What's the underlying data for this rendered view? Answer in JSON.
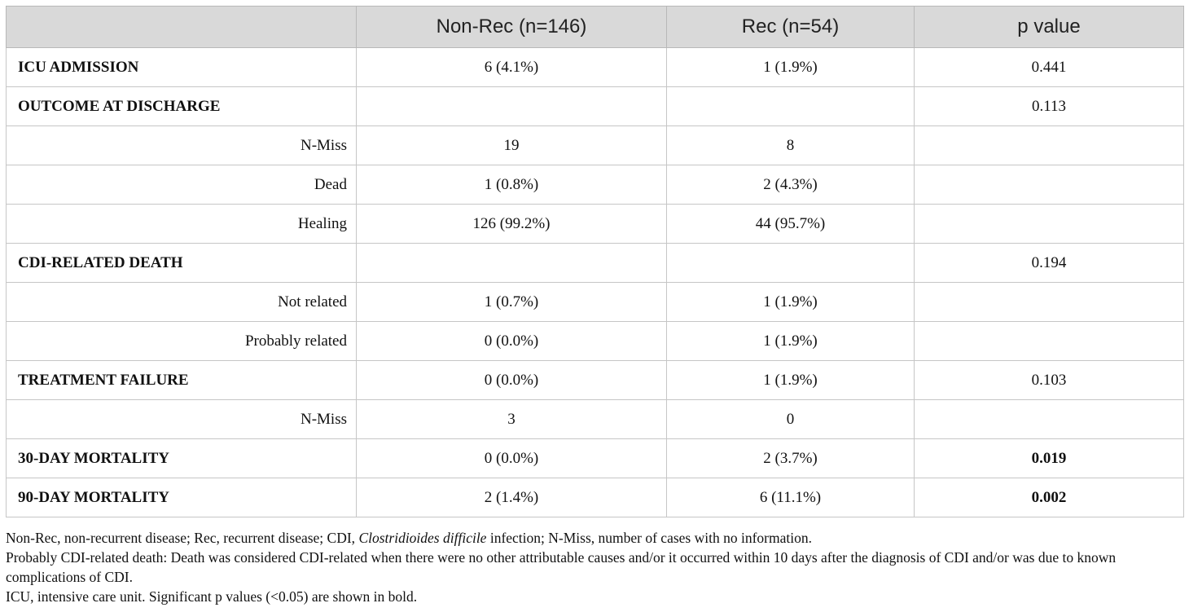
{
  "table": {
    "headers": [
      "",
      "Non-Rec (n=146)",
      "Rec (n=54)",
      "p value"
    ],
    "rows": [
      {
        "label": "ICU ADMISSION",
        "type": "main",
        "nonrec": "6 (4.1%)",
        "rec": "1 (1.9%)",
        "p": "0.441",
        "p_bold": false
      },
      {
        "label": "OUTCOME AT DISCHARGE",
        "type": "main",
        "nonrec": "",
        "rec": "",
        "p": "0.113",
        "p_bold": false
      },
      {
        "label": "N-Miss",
        "type": "sub",
        "nonrec": "19",
        "rec": "8",
        "p": "",
        "p_bold": false
      },
      {
        "label": "Dead",
        "type": "sub",
        "nonrec": "1 (0.8%)",
        "rec": "2 (4.3%)",
        "p": "",
        "p_bold": false
      },
      {
        "label": "Healing",
        "type": "sub",
        "nonrec": "126 (99.2%)",
        "rec": "44 (95.7%)",
        "p": "",
        "p_bold": false
      },
      {
        "label": "CDI-RELATED DEATH",
        "type": "main",
        "nonrec": "",
        "rec": "",
        "p": "0.194",
        "p_bold": false
      },
      {
        "label": "Not related",
        "type": "sub",
        "nonrec": "1 (0.7%)",
        "rec": "1 (1.9%)",
        "p": "",
        "p_bold": false
      },
      {
        "label": "Probably related",
        "type": "sub",
        "nonrec": "0 (0.0%)",
        "rec": "1 (1.9%)",
        "p": "",
        "p_bold": false
      },
      {
        "label": "TREATMENT FAILURE",
        "type": "main",
        "nonrec": "0 (0.0%)",
        "rec": "1 (1.9%)",
        "p": "0.103",
        "p_bold": false
      },
      {
        "label": "N-Miss",
        "type": "sub",
        "nonrec": "3",
        "rec": "0",
        "p": "",
        "p_bold": false
      },
      {
        "label": "30-DAY MORTALITY",
        "type": "main",
        "nonrec": "0 (0.0%)",
        "rec": "2 (3.7%)",
        "p": "0.019",
        "p_bold": true
      },
      {
        "label": "90-DAY MORTALITY",
        "type": "main",
        "nonrec": "2 (1.4%)",
        "rec": "6 (11.1%)",
        "p": "0.002",
        "p_bold": true
      }
    ]
  },
  "footnotes": {
    "line1_pre": "Non-Rec, non-recurrent disease; Rec, recurrent disease; CDI, ",
    "line1_italic": "Clostridioides difficile",
    "line1_post": " infection; N-Miss, number of cases with no information.",
    "line2": "Probably CDI-related death: Death was considered CDI-related when there were no other attributable causes and/or it occurred within 10 days after the diagnosis of CDI and/or was due to known complications of CDI.",
    "line3": "ICU, intensive care unit. Significant p values (<0.05) are shown in bold."
  }
}
